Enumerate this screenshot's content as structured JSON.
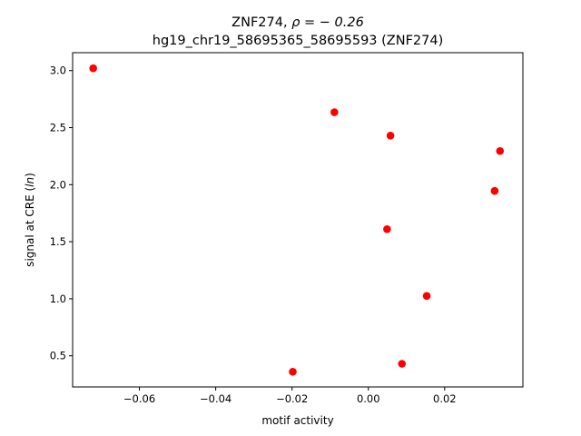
{
  "chart_data": {
    "type": "scatter",
    "title_line1": "ZNF274, ",
    "title_rho": "ρ = − 0.26",
    "title_line2": "hg19_chr19_58695365_58695593 (ZNF274)",
    "xlabel": "motif activity",
    "ylabel_prefix": "signal at CRE (",
    "ylabel_italic": "ln",
    "ylabel_suffix": ")",
    "xlim": [
      -0.0775,
      0.0405
    ],
    "ylim": [
      0.227,
      3.157
    ],
    "xticks": [
      {
        "value": -0.06,
        "label": "−0.06"
      },
      {
        "value": -0.04,
        "label": "−0.04"
      },
      {
        "value": -0.02,
        "label": "−0.02"
      },
      {
        "value": 0.0,
        "label": "0.00"
      },
      {
        "value": 0.02,
        "label": "0.02"
      }
    ],
    "yticks": [
      {
        "value": 0.5,
        "label": "0.5"
      },
      {
        "value": 1.0,
        "label": "1.0"
      },
      {
        "value": 1.5,
        "label": "1.5"
      },
      {
        "value": 2.0,
        "label": "2.0"
      },
      {
        "value": 2.5,
        "label": "2.5"
      },
      {
        "value": 3.0,
        "label": "3.0"
      }
    ],
    "points": [
      {
        "x": -0.0721,
        "y": 3.02
      },
      {
        "x": -0.0089,
        "y": 2.635
      },
      {
        "x": 0.0058,
        "y": 2.43
      },
      {
        "x": 0.0345,
        "y": 2.295
      },
      {
        "x": 0.0331,
        "y": 1.945
      },
      {
        "x": 0.0049,
        "y": 1.61
      },
      {
        "x": 0.0153,
        "y": 1.025
      },
      {
        "x": -0.0198,
        "y": 0.36
      },
      {
        "x": 0.0088,
        "y": 0.43
      }
    ],
    "marker_color": "#ff0000",
    "grid": false,
    "legend": "none"
  }
}
